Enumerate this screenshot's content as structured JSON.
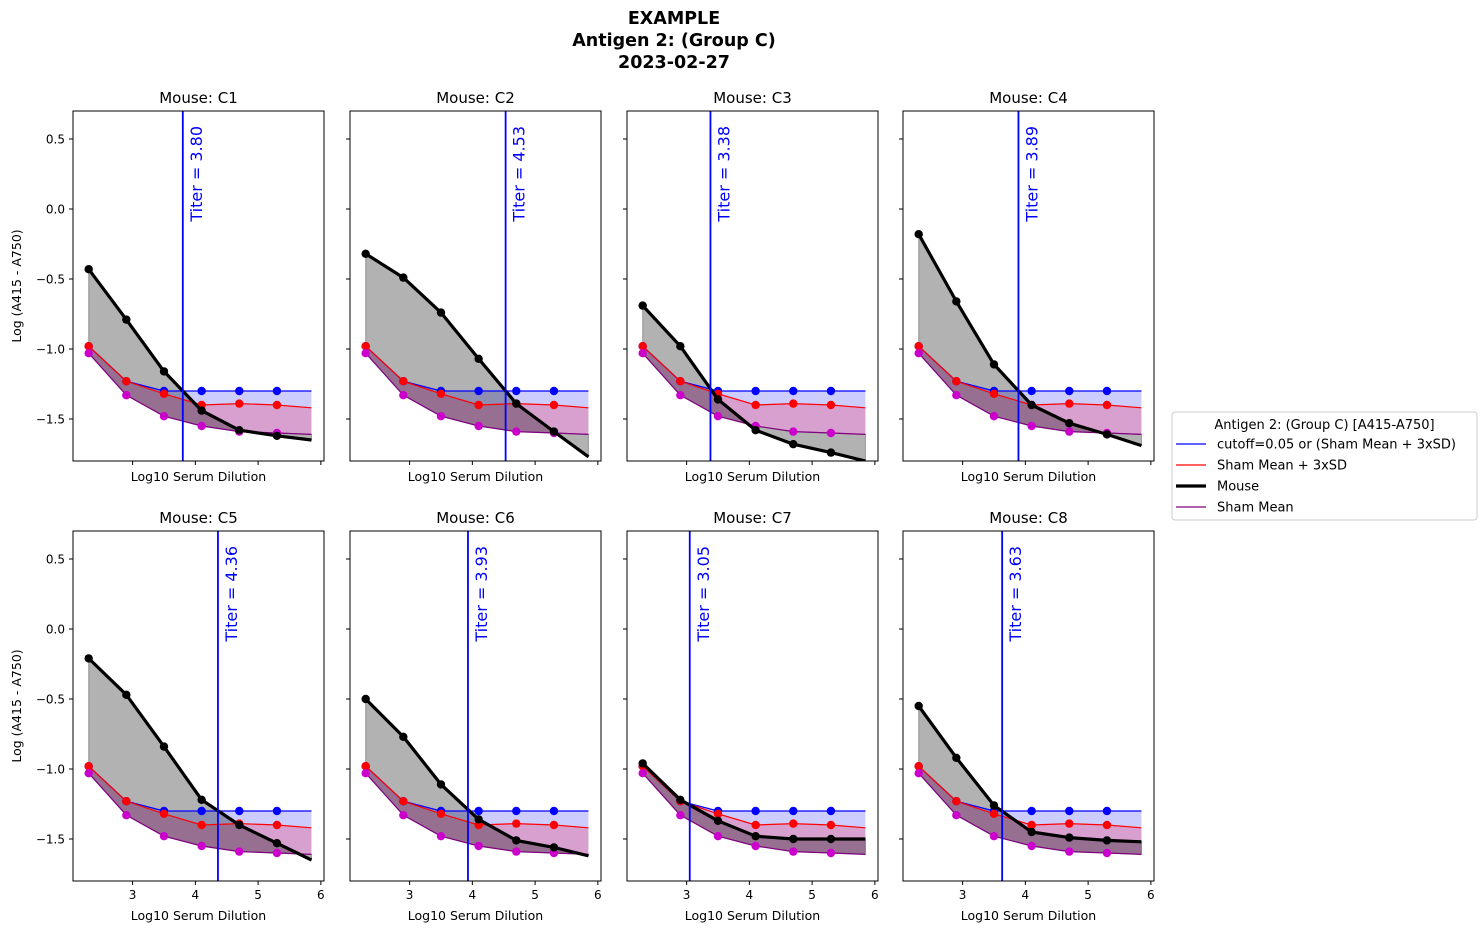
{
  "figure": {
    "title_lines": [
      "EXAMPLE",
      "Antigen 2: (Group C)",
      "2023-02-27"
    ]
  },
  "colors": {
    "cutoff": "#0000ff",
    "sham_mean_3sd": "#ff0000",
    "mouse": "#000000",
    "sham_mean": "#800080",
    "sham_points": "#cc00cc",
    "titer_text": "#0000ff",
    "mouse_fill": "#b3b3b3",
    "cutoff_fill": "#ccccff",
    "sham_fill": "#d8a0cf"
  },
  "legend": {
    "title": "Antigen 2: (Group C) [A415-A750]",
    "entries": [
      {
        "key": "cutoff",
        "label": "cutoff=0.05 or (Sham Mean + 3xSD)"
      },
      {
        "key": "sham_mean_3sd",
        "label": "Sham Mean + 3xSD"
      },
      {
        "key": "mouse",
        "label": "Mouse"
      },
      {
        "key": "sham_mean",
        "label": "Sham Mean"
      }
    ]
  },
  "chart_data": {
    "type": "line",
    "xlabel": "Log10 Serum Dilution",
    "ylabel": "Log (A415 - A750)",
    "xlim": [
      2.05,
      6.05
    ],
    "ylim": [
      -1.8,
      0.7
    ],
    "xticks": [
      3,
      4,
      5,
      6
    ],
    "yticks": [
      0.5,
      0.0,
      -0.5,
      -1.0,
      -1.5
    ],
    "xtick_labels": [
      "3",
      "4",
      "5",
      "6"
    ],
    "ytick_labels": [
      "0.5",
      "0.0",
      "−0.5",
      "−1.0",
      "−1.5"
    ],
    "x": [
      2.3,
      2.9,
      3.5,
      4.1,
      4.7,
      5.3
    ],
    "line_x_end": 5.85,
    "cutoff": [
      -0.98,
      -1.23,
      -1.3,
      -1.3,
      -1.3,
      -1.3,
      -1.3
    ],
    "sham_mean_3sd": [
      -0.98,
      -1.23,
      -1.32,
      -1.4,
      -1.39,
      -1.4,
      -1.42
    ],
    "sham_mean": [
      -1.03,
      -1.33,
      -1.48,
      -1.55,
      -1.59,
      -1.6,
      -1.61
    ],
    "titer_label_prefix": "Titer = ",
    "panels": [
      {
        "title": "Mouse: C1",
        "titer": 3.8,
        "titer_label": "3.80",
        "mouse": [
          -0.43,
          -0.79,
          -1.16,
          -1.44,
          -1.58,
          -1.62,
          -1.65
        ]
      },
      {
        "title": "Mouse: C2",
        "titer": 4.53,
        "titer_label": "4.53",
        "mouse": [
          -0.32,
          -0.49,
          -0.74,
          -1.07,
          -1.39,
          -1.59,
          -1.77
        ]
      },
      {
        "title": "Mouse: C3",
        "titer": 3.38,
        "titer_label": "3.38",
        "mouse": [
          -0.69,
          -0.98,
          -1.36,
          -1.58,
          -1.68,
          -1.74,
          -1.8
        ]
      },
      {
        "title": "Mouse: C4",
        "titer": 3.89,
        "titer_label": "3.89",
        "mouse": [
          -0.18,
          -0.66,
          -1.11,
          -1.4,
          -1.53,
          -1.61,
          -1.69
        ]
      },
      {
        "title": "Mouse: C5",
        "titer": 4.36,
        "titer_label": "4.36",
        "mouse": [
          -0.21,
          -0.47,
          -0.84,
          -1.22,
          -1.4,
          -1.53,
          -1.65
        ]
      },
      {
        "title": "Mouse: C6",
        "titer": 3.93,
        "titer_label": "3.93",
        "mouse": [
          -0.5,
          -0.77,
          -1.11,
          -1.36,
          -1.51,
          -1.56,
          -1.62
        ]
      },
      {
        "title": "Mouse: C7",
        "titer": 3.05,
        "titer_label": "3.05",
        "mouse": [
          -0.96,
          -1.22,
          -1.37,
          -1.48,
          -1.5,
          -1.5,
          -1.5
        ]
      },
      {
        "title": "Mouse: C8",
        "titer": 3.63,
        "titer_label": "3.63",
        "mouse": [
          -0.55,
          -0.92,
          -1.26,
          -1.45,
          -1.49,
          -1.51,
          -1.52
        ]
      }
    ]
  }
}
